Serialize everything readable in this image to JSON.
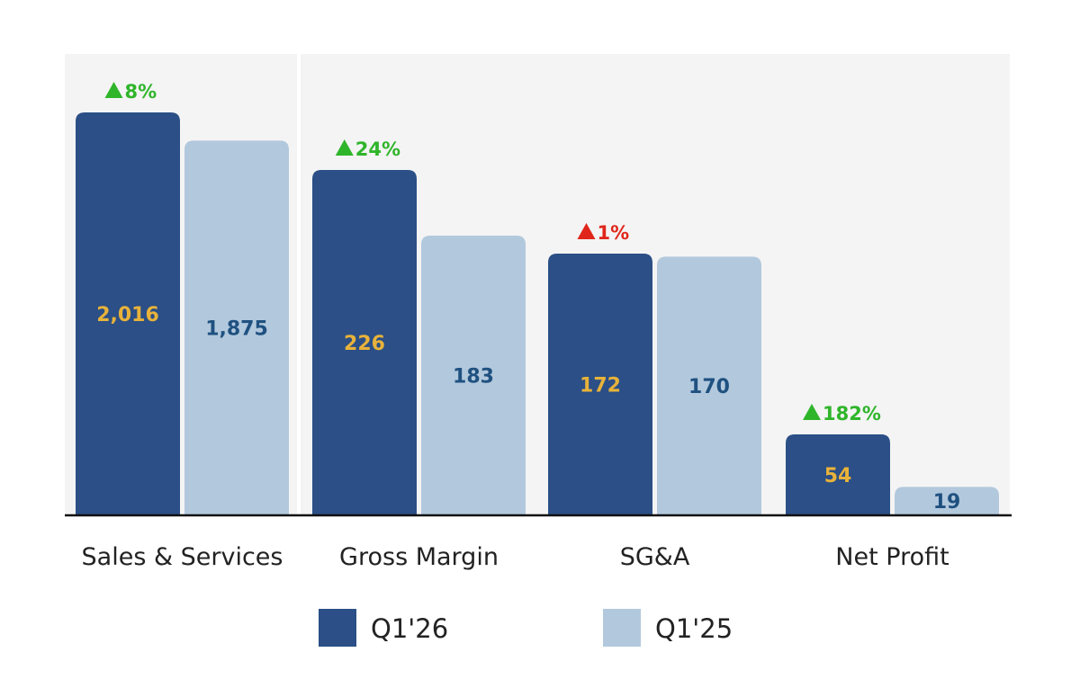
{
  "chart_data": {
    "type": "bar",
    "categories": [
      "Sales & Services",
      "Gross Margin",
      "SG&A",
      "Net Profit"
    ],
    "series": [
      {
        "name": "Q1'26",
        "values": [
          2016,
          226,
          172,
          54
        ],
        "value_labels": [
          "2,016",
          "226",
          "172",
          "54"
        ],
        "color": "#2b4f86",
        "label_color": "#e8b23a"
      },
      {
        "name": "Q1'25",
        "values": [
          1875,
          183,
          170,
          19
        ],
        "value_labels": [
          "1,875",
          "183",
          "170",
          "19"
        ],
        "color": "#b2c8dd",
        "label_color": "#1f5180"
      }
    ],
    "changes": [
      {
        "direction": "up",
        "text": "8%",
        "color": "#2fb52a"
      },
      {
        "direction": "up",
        "text": "24%",
        "color": "#2fb52a"
      },
      {
        "direction": "up",
        "text": "1%",
        "color": "#e0261a"
      },
      {
        "direction": "up",
        "text": "182%",
        "color": "#2fb52a"
      }
    ],
    "legend_placement": "bottom",
    "grid": false
  },
  "colors": {
    "panel_background": "#f4f4f4",
    "baseline": "#111111"
  }
}
